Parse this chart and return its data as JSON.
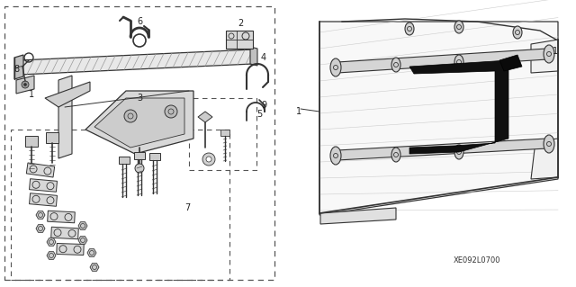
{
  "bg_color": "#ffffff",
  "fig_width": 6.4,
  "fig_height": 3.19,
  "dpi": 100,
  "ref_code": "XE092L0700",
  "line_color": "#333333",
  "light_gray": "#d0d0d0",
  "mid_gray": "#aaaaaa",
  "dark_gray": "#555555",
  "black": "#111111",
  "font_size": 7,
  "font_size_ref": 6
}
